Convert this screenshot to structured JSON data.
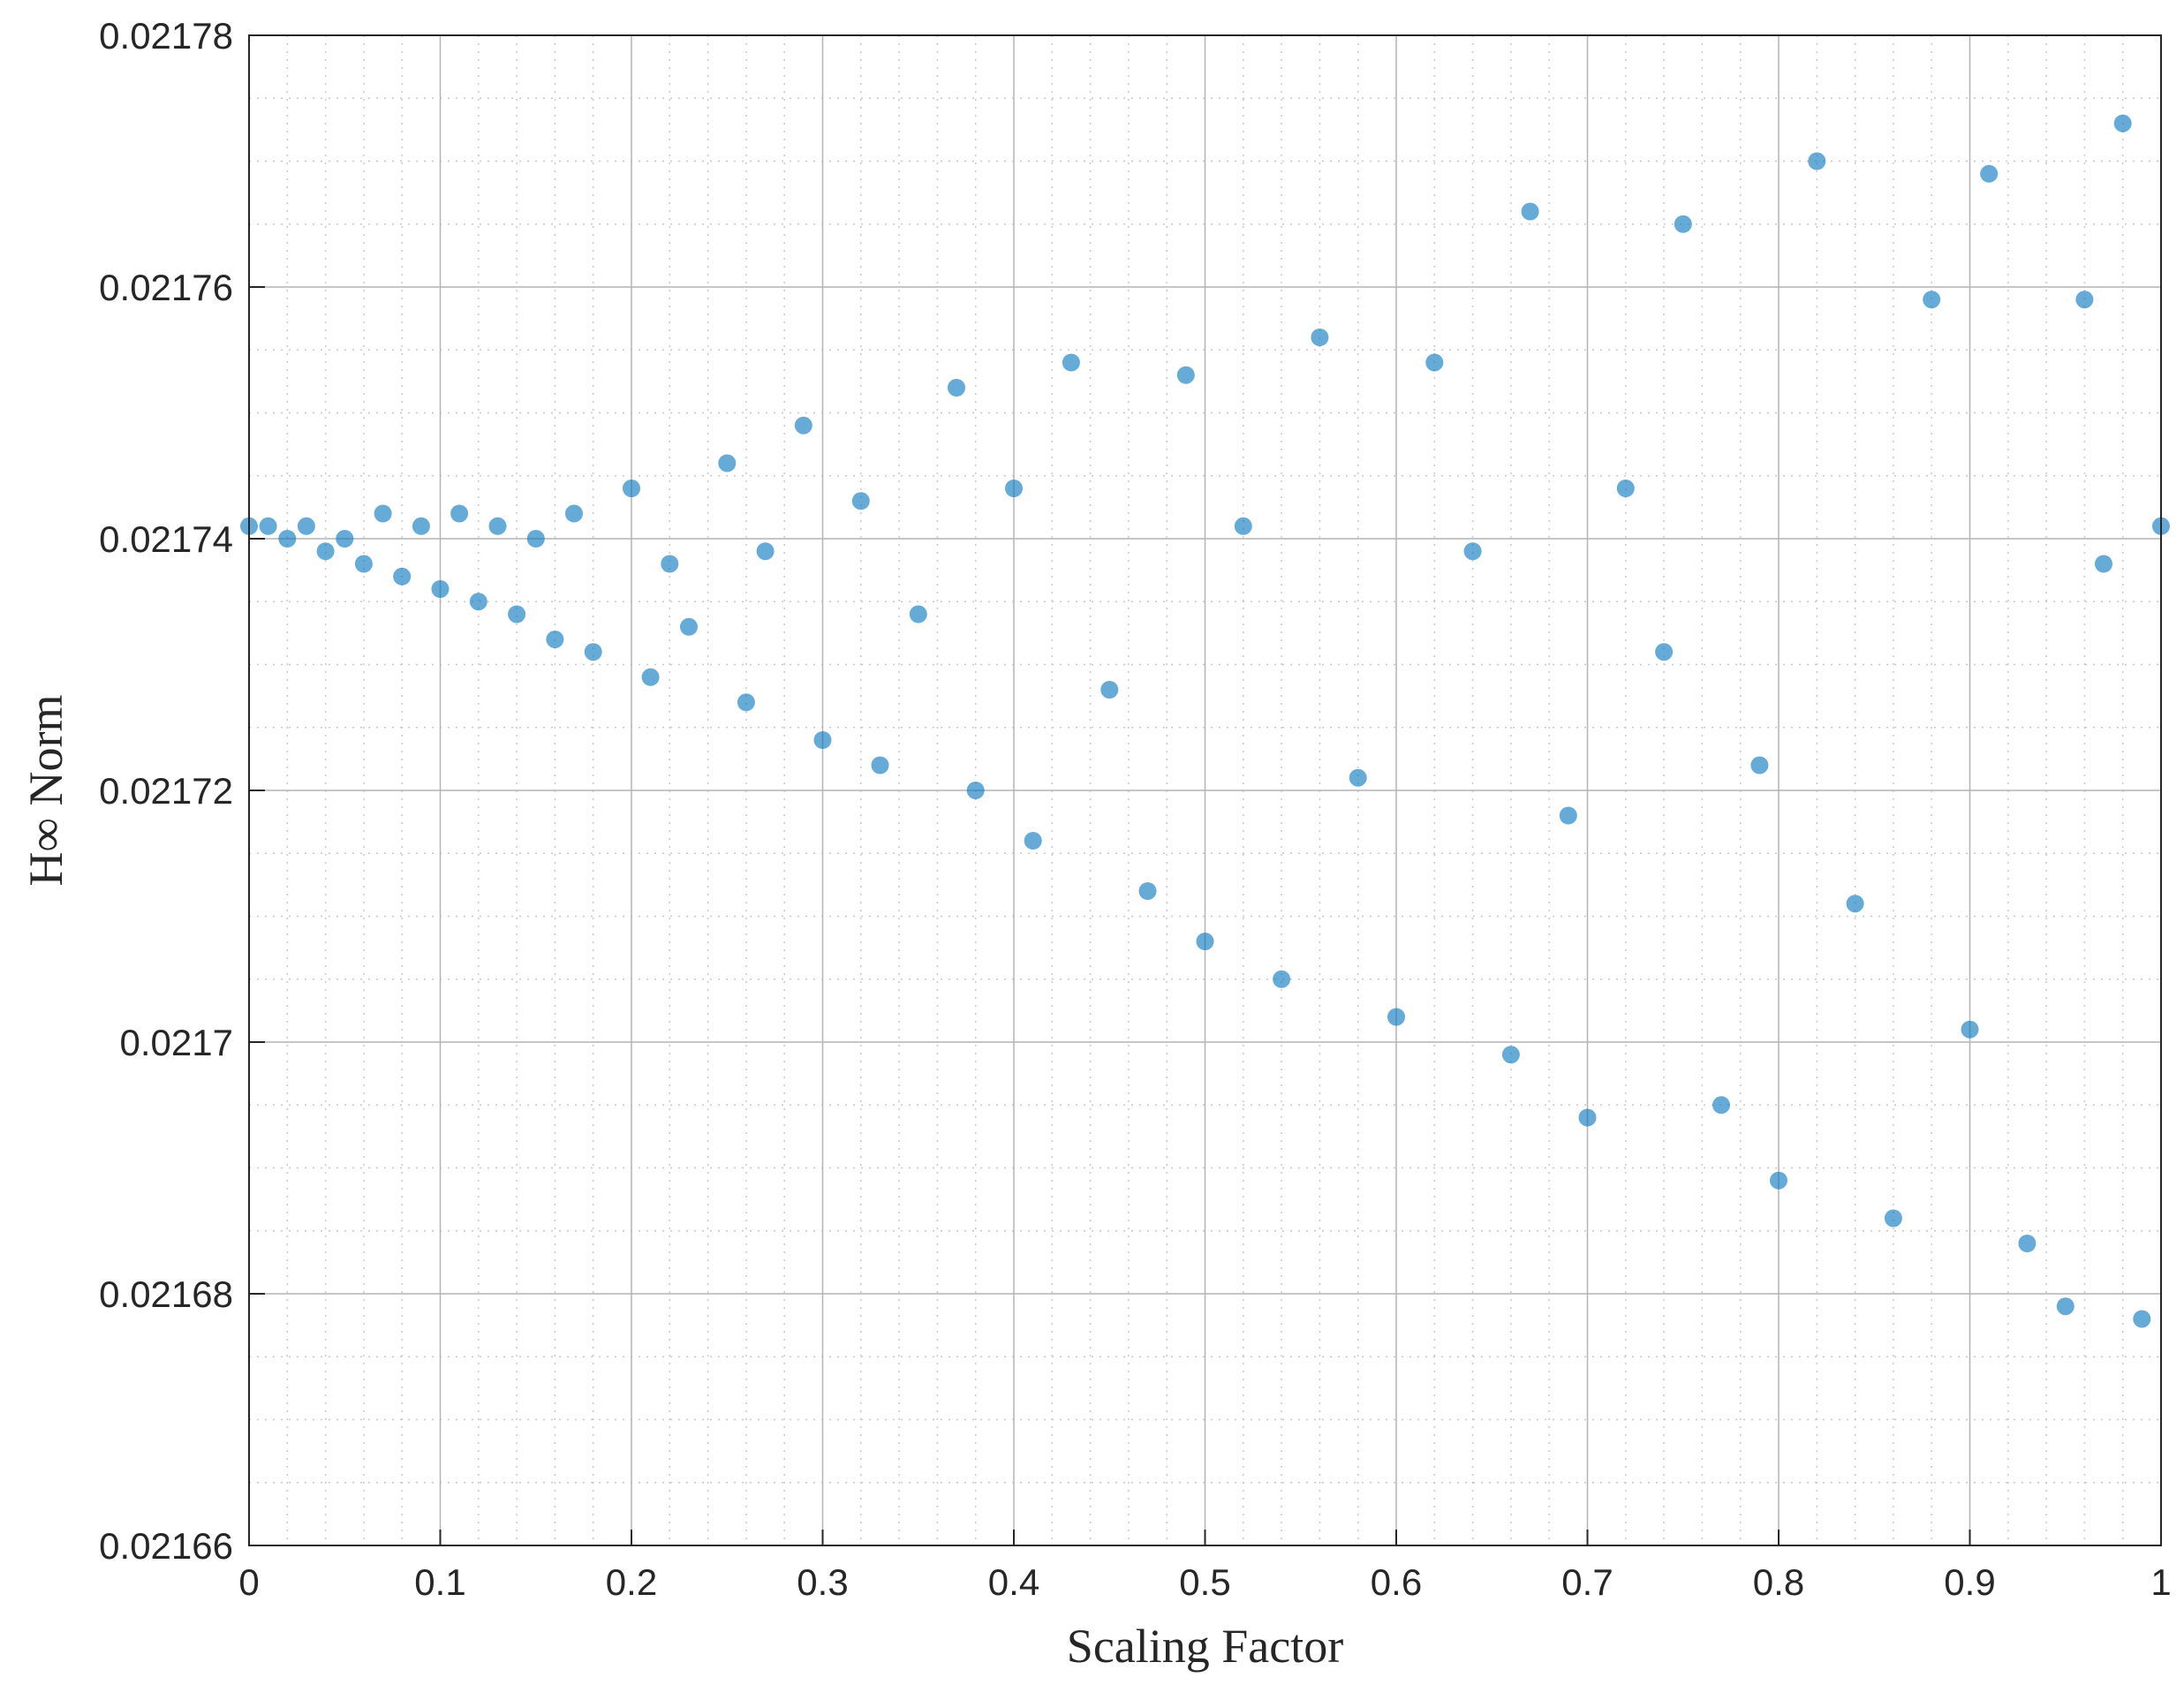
{
  "chart_data": {
    "type": "scatter",
    "title": "",
    "xlabel": "Scaling Factor",
    "ylabel": "H∞ Norm",
    "xlim": [
      0,
      1
    ],
    "ylim": [
      0.02166,
      0.02178
    ],
    "x_ticks": [
      0,
      0.1,
      0.2,
      0.3,
      0.4,
      0.5,
      0.6,
      0.7,
      0.8,
      0.9,
      1
    ],
    "x_tick_labels": [
      "0",
      "0.1",
      "0.2",
      "0.3",
      "0.4",
      "0.5",
      "0.6",
      "0.7",
      "0.8",
      "0.9",
      "1"
    ],
    "y_ticks": [
      0.02166,
      0.02168,
      0.0217,
      0.02172,
      0.02174,
      0.02176,
      0.02178
    ],
    "y_tick_labels": [
      "0.02166",
      "0.02168",
      "0.0217",
      "0.02172",
      "0.02174",
      "0.02176",
      "0.02178"
    ],
    "grid": true,
    "minor_grid": true,
    "marker_color": "#0072BD",
    "marker_opacity": 0.6,
    "series": [
      {
        "center": 0.021741,
        "points": [
          [
            0.0,
            0.021741
          ],
          [
            0.01,
            0.021741
          ],
          [
            0.02,
            0.02174
          ],
          [
            0.03,
            0.021741
          ],
          [
            0.04,
            0.021739
          ],
          [
            0.05,
            0.02174
          ],
          [
            0.06,
            0.021738
          ],
          [
            0.07,
            0.021742
          ],
          [
            0.08,
            0.021737
          ],
          [
            0.09,
            0.021741
          ],
          [
            0.1,
            0.021736
          ],
          [
            0.11,
            0.021742
          ],
          [
            0.12,
            0.021735
          ],
          [
            0.13,
            0.021741
          ],
          [
            0.14,
            0.021734
          ],
          [
            0.15,
            0.02174
          ],
          [
            0.16,
            0.021732
          ],
          [
            0.17,
            0.021742
          ],
          [
            0.18,
            0.021731
          ],
          [
            0.2,
            0.021744
          ],
          [
            0.21,
            0.021729
          ],
          [
            0.22,
            0.021738
          ],
          [
            0.23,
            0.021733
          ],
          [
            0.25,
            0.021746
          ],
          [
            0.26,
            0.021727
          ],
          [
            0.27,
            0.021739
          ],
          [
            0.29,
            0.021749
          ],
          [
            0.3,
            0.021724
          ],
          [
            0.32,
            0.021743
          ],
          [
            0.33,
            0.021722
          ],
          [
            0.35,
            0.021734
          ],
          [
            0.37,
            0.021752
          ],
          [
            0.38,
            0.02172
          ],
          [
            0.4,
            0.021744
          ],
          [
            0.41,
            0.021716
          ],
          [
            0.43,
            0.021754
          ],
          [
            0.45,
            0.021728
          ],
          [
            0.47,
            0.021712
          ],
          [
            0.49,
            0.021753
          ],
          [
            0.5,
            0.021708
          ],
          [
            0.52,
            0.021741
          ],
          [
            0.54,
            0.021705
          ],
          [
            0.56,
            0.021756
          ],
          [
            0.58,
            0.021721
          ],
          [
            0.6,
            0.021702
          ],
          [
            0.62,
            0.021754
          ],
          [
            0.64,
            0.021739
          ],
          [
            0.66,
            0.021699
          ],
          [
            0.67,
            0.021766
          ],
          [
            0.69,
            0.021718
          ],
          [
            0.7,
            0.021694
          ],
          [
            0.72,
            0.021744
          ],
          [
            0.74,
            0.021731
          ],
          [
            0.75,
            0.021765
          ],
          [
            0.77,
            0.021695
          ],
          [
            0.79,
            0.021722
          ],
          [
            0.8,
            0.021689
          ],
          [
            0.82,
            0.02177
          ],
          [
            0.84,
            0.021711
          ],
          [
            0.86,
            0.021686
          ],
          [
            0.88,
            0.021759
          ],
          [
            0.9,
            0.021701
          ],
          [
            0.91,
            0.021769
          ],
          [
            0.93,
            0.021684
          ],
          [
            0.95,
            0.021679
          ],
          [
            0.96,
            0.021759
          ],
          [
            0.97,
            0.021738
          ],
          [
            0.98,
            0.021773
          ],
          [
            0.99,
            0.021678
          ],
          [
            1.0,
            0.021741
          ]
        ]
      }
    ]
  }
}
